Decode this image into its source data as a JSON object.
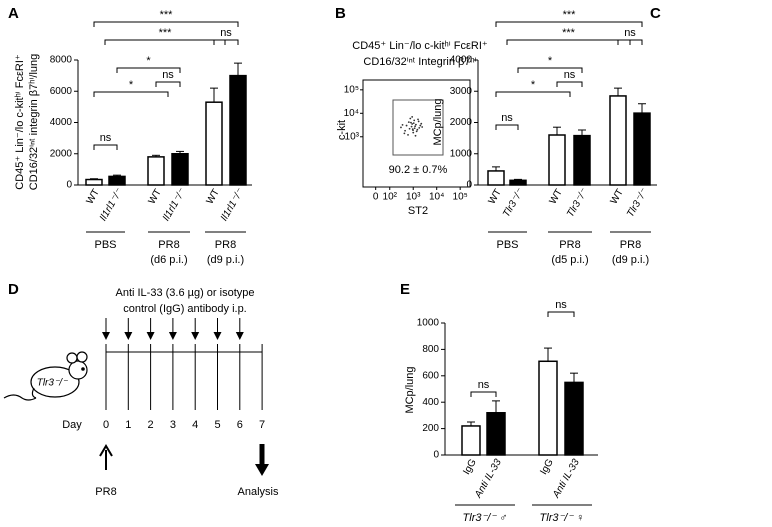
{
  "chart_data": [
    {
      "type": "bar",
      "panel": "A",
      "ylabel": [
        "CD45⁺ Lin⁻/lo c-kitʰⁱ FcεRI⁺",
        "CD16/32ⁱⁿᵗ integrin β7ʰⁱ/lung"
      ],
      "categories": [
        "WT",
        "Il1rl1⁻/⁻",
        "WT",
        "Il1rl1⁻/⁻",
        "WT",
        "Il1rl1⁻/⁻"
      ],
      "values": [
        350,
        550,
        1800,
        2000,
        5300,
        7000
      ],
      "errors": [
        50,
        80,
        100,
        150,
        900,
        800
      ],
      "colors": [
        "#ffffff",
        "#000000",
        "#ffffff",
        "#000000",
        "#ffffff",
        "#000000"
      ],
      "groups": [
        [
          "PBS"
        ],
        [
          "PR8",
          "(d6 p.i.)"
        ],
        [
          "PR8",
          "(d9 p.i.)"
        ]
      ],
      "annotations": [
        "ns",
        "*",
        "ns",
        "*",
        "***",
        "***",
        "ns"
      ],
      "ylim": [
        0,
        8000
      ],
      "yticks": [
        0,
        2000,
        4000,
        6000,
        8000
      ]
    },
    {
      "type": "scatter",
      "panel": "B",
      "title": [
        "CD45⁺ Lin⁻/lo c-kitʰⁱ FcεRI⁺",
        "CD16/32ⁱⁿᵗ Integrin β7ʰⁱ"
      ],
      "xlabel": "ST2",
      "ylabel": "c-kit",
      "gate_label": "90.2 ± 0.7%",
      "x": [
        300,
        450,
        520,
        700,
        800,
        900,
        1000,
        1100,
        1200,
        1300,
        1500,
        1700,
        2000,
        2400,
        600,
        750,
        850,
        950,
        1050,
        1400,
        1600,
        1800,
        350,
        420,
        1250,
        650,
        900,
        2200,
        1150,
        980
      ],
      "y": [
        2500,
        1800,
        3000,
        2200,
        4000,
        3500,
        1500,
        5000,
        2800,
        3300,
        2000,
        4500,
        3000,
        2600,
        1200,
        6000,
        2700,
        2100,
        3800,
        1700,
        5500,
        2400,
        3200,
        1400,
        1100,
        4200,
        7000,
        3600,
        2300,
        1900
      ],
      "color": "#333333",
      "xlim": [
        -90,
        262144
      ],
      "ylim": [
        -90,
        262144
      ],
      "xticks": [
        0,
        {
          "value": 100,
          "label": "10²"
        },
        {
          "value": 1000,
          "label": "10³"
        },
        {
          "value": 10000,
          "label": "10⁴"
        },
        {
          "value": 100000,
          "label": "10⁵"
        }
      ],
      "yticks": [
        {
          "value": 1000,
          "label": "10³"
        },
        {
          "value": 10000,
          "label": "10⁴"
        },
        {
          "value": 100000,
          "label": "10⁵"
        }
      ]
    },
    {
      "type": "bar",
      "panel": "C",
      "ylabel": [
        "MCp/lung"
      ],
      "categories": [
        "WT",
        "Tlr3⁻/⁻",
        "WT",
        "Tlr3⁻/⁻",
        "WT",
        "Tlr3⁻/⁻"
      ],
      "values": [
        450,
        150,
        1600,
        1580,
        2850,
        2300
      ],
      "errors": [
        130,
        30,
        250,
        180,
        250,
        300
      ],
      "colors": [
        "#ffffff",
        "#000000",
        "#ffffff",
        "#000000",
        "#ffffff",
        "#000000"
      ],
      "groups": [
        [
          "PBS"
        ],
        [
          "PR8",
          "(d5 p.i.)"
        ],
        [
          "PR8",
          "(d9 p.i.)"
        ]
      ],
      "annotations": [
        "ns",
        "*",
        "ns",
        "*",
        "***",
        "***",
        "ns"
      ],
      "ylim": [
        0,
        4000
      ],
      "yticks": [
        0,
        1000,
        2000,
        3000,
        4000
      ]
    },
    {
      "type": "bar",
      "panel": "E",
      "ylabel": [
        "MCp/lung"
      ],
      "categories": [
        "IgG",
        "Anti IL-33",
        "IgG",
        "Anti IL-33"
      ],
      "values": [
        220,
        320,
        710,
        550
      ],
      "errors": [
        30,
        90,
        100,
        70
      ],
      "colors": [
        "#ffffff",
        "#000000",
        "#ffffff",
        "#000000"
      ],
      "groups": [
        [
          "Tlr3⁻/⁻ ♂"
        ],
        [
          "Tlr3⁻/⁻ ♀"
        ]
      ],
      "annotations": [
        "ns",
        "ns"
      ],
      "ylim": [
        0,
        1000
      ],
      "yticks": [
        0,
        200,
        400,
        600,
        800,
        1000
      ]
    }
  ],
  "diagram": {
    "panel": "D",
    "treatment": [
      "Anti IL-33 (3.6 µg) or isotype",
      "control (IgG) antibody i.p."
    ],
    "mouse": "Tlr3⁻/⁻",
    "day_label": "Day",
    "days": [
      "0",
      "1",
      "2",
      "3",
      "4",
      "5",
      "6",
      "7"
    ],
    "start": "PR8",
    "end": "Analysis"
  }
}
